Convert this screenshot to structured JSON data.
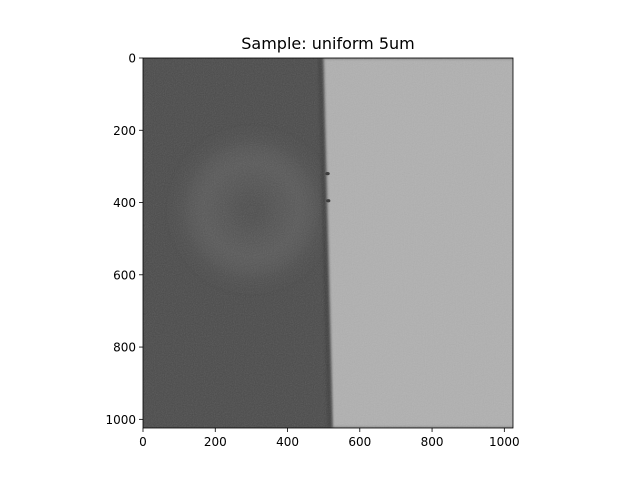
{
  "chart_data": {
    "type": "heatmap",
    "title": "Sample: uniform 5um",
    "xlabel": "",
    "ylabel": "",
    "colormap": "gray",
    "image_size": [
      1024,
      1024
    ],
    "xlim": [
      0,
      1024
    ],
    "ylim": [
      1024,
      0
    ],
    "y_inverted": true,
    "x_ticks": [
      0,
      200,
      400,
      600,
      800,
      1000
    ],
    "y_ticks": [
      0,
      200,
      400,
      600,
      800,
      1000
    ],
    "grid": false,
    "regions": {
      "left_intensity_hex": "#4a4a4a",
      "right_intensity_hex": "#b0b0b0",
      "boundary_x_at_top": 497,
      "boundary_x_at_bottom": 523
    },
    "features": [
      {
        "description": "faint bright arc",
        "center": [
          300,
          420
        ],
        "radius": 200
      },
      {
        "description": "small dark notches on boundary",
        "y": [
          320,
          395
        ]
      }
    ]
  }
}
